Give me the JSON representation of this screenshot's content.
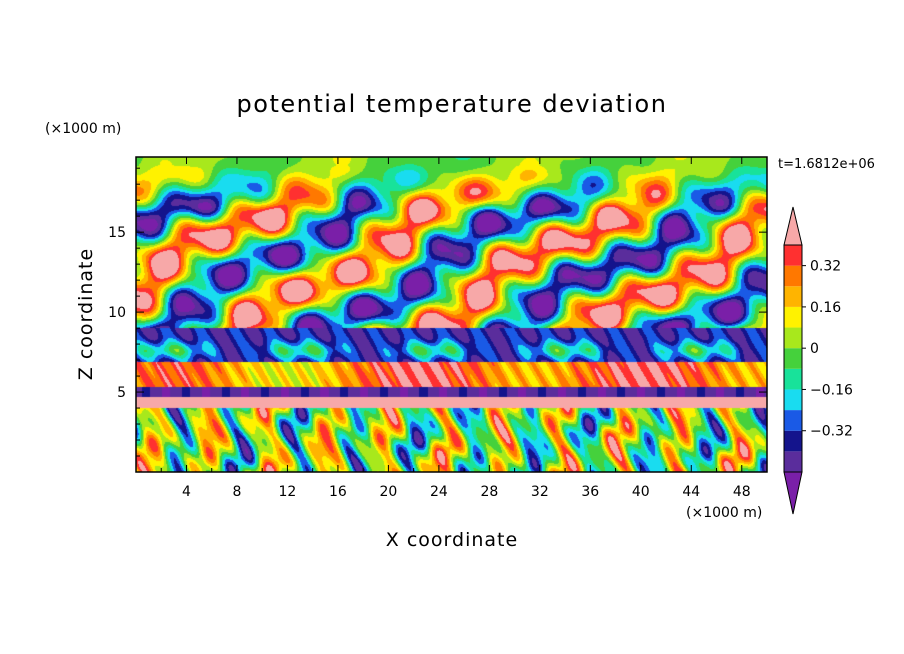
{
  "chart_data": {
    "type": "heatmap",
    "title": "potential temperature deviation",
    "xlabel": "X coordinate",
    "ylabel": "Z coordinate",
    "x_unit": "(×1000 m)",
    "y_unit": "(×1000 m)",
    "time_label": "t=1.6812e+06",
    "xlim": [
      0,
      50
    ],
    "ylim": [
      0,
      19.7
    ],
    "xticks": [
      "4",
      "8",
      "12",
      "16",
      "20",
      "24",
      "28",
      "32",
      "36",
      "40",
      "44",
      "48"
    ],
    "yticks": [
      "5",
      "10",
      "15"
    ],
    "colorbar": {
      "levels": [
        -0.48,
        -0.4,
        -0.32,
        -0.24,
        -0.16,
        -0.08,
        0,
        0.08,
        0.16,
        0.24,
        0.32,
        0.4
      ],
      "labels": [
        "0.32",
        "0.16",
        "0",
        "−0.16",
        "−0.32"
      ],
      "colors": [
        "#7a1fa8",
        "#5a2d9c",
        "#14148c",
        "#1a5ae6",
        "#19dcf0",
        "#18e29a",
        "#45d13c",
        "#a8e81c",
        "#fff200",
        "#ffb400",
        "#ff7800",
        "#ff3030",
        "#f7a8a8"
      ],
      "extend": "both"
    }
  }
}
